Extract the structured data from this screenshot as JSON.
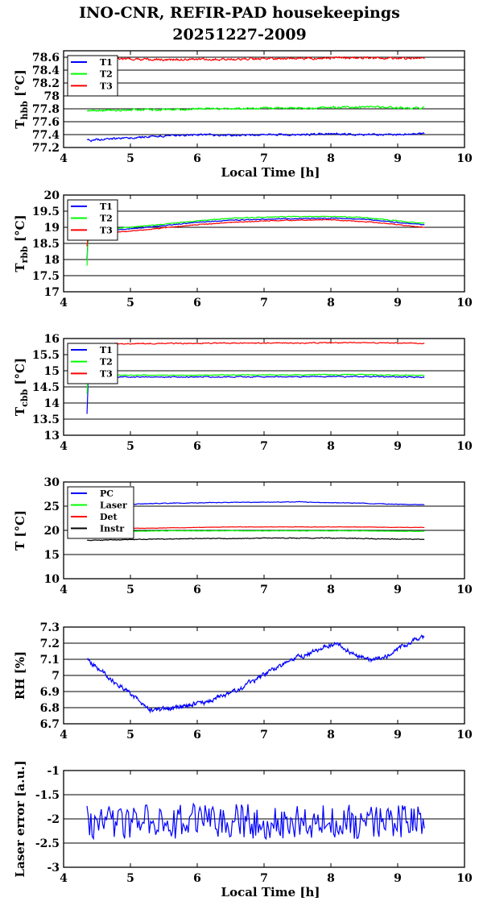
{
  "figure": {
    "title_line1": "INO-CNR, REFIR-PAD housekeepings",
    "title_line2": "20251227-2009"
  },
  "chart_data": [
    {
      "type": "line",
      "ylabel": "T_hbb [°C]",
      "ylabel_main": "T",
      "ylabel_sub": "hbb",
      "ylabel_tail": " [°C]",
      "xlabel": "Local Time [h]",
      "xlim": [
        4,
        10
      ],
      "ylim": [
        77.2,
        78.7
      ],
      "yticks": [
        77.2,
        77.4,
        77.6,
        77.8,
        78,
        78.2,
        78.4,
        78.6
      ],
      "xticks": [
        4,
        5,
        6,
        7,
        8,
        9,
        10
      ],
      "grid": "horizontal",
      "legend_position": "top-left",
      "series": [
        {
          "name": "T1",
          "color": "#0000ff",
          "x": [
            4.35,
            5.0,
            5.5,
            6.0,
            6.5,
            7.0,
            7.5,
            8.0,
            8.5,
            9.0,
            9.4
          ],
          "values": [
            77.31,
            77.35,
            77.38,
            77.4,
            77.39,
            77.4,
            77.4,
            77.41,
            77.4,
            77.4,
            77.42
          ],
          "noise": 0.012
        },
        {
          "name": "T2",
          "color": "#00ff00",
          "x": [
            4.35,
            5.0,
            5.5,
            6.0,
            6.5,
            7.0,
            7.5,
            8.0,
            8.5,
            9.0,
            9.4
          ],
          "values": [
            77.77,
            77.78,
            77.79,
            77.8,
            77.8,
            77.81,
            77.81,
            77.82,
            77.83,
            77.82,
            77.81
          ],
          "noise": 0.012
        },
        {
          "name": "T3",
          "color": "#ff0000",
          "x": [
            4.35,
            5.0,
            5.5,
            6.0,
            6.5,
            7.0,
            7.5,
            8.0,
            8.5,
            9.0,
            9.4
          ],
          "values": [
            78.57,
            78.57,
            78.56,
            78.57,
            78.57,
            78.58,
            78.58,
            78.59,
            78.59,
            78.58,
            78.58
          ],
          "noise": 0.013
        }
      ]
    },
    {
      "type": "line",
      "ylabel": "T_rbb [°C]",
      "ylabel_main": "T",
      "ylabel_sub": "rbb",
      "ylabel_tail": " [°C]",
      "xlabel": "",
      "xlim": [
        4,
        10
      ],
      "ylim": [
        17,
        20
      ],
      "yticks": [
        17,
        17.5,
        18,
        18.5,
        19,
        19.5,
        20
      ],
      "xticks": [
        4,
        5,
        6,
        7,
        8,
        9,
        10
      ],
      "grid": "horizontal",
      "legend_position": "top-left",
      "series": [
        {
          "name": "T1",
          "color": "#0000ff",
          "x": [
            4.35,
            4.37,
            4.5,
            5.0,
            5.5,
            6.0,
            6.5,
            7.0,
            7.5,
            8.0,
            8.5,
            9.0,
            9.4
          ],
          "values": [
            18.0,
            18.85,
            18.88,
            18.95,
            19.05,
            19.15,
            19.22,
            19.25,
            19.27,
            19.28,
            19.25,
            19.15,
            19.08
          ],
          "noise": 0.01
        },
        {
          "name": "T2",
          "color": "#00ff00",
          "x": [
            4.35,
            4.37,
            4.5,
            5.0,
            5.5,
            6.0,
            6.5,
            7.0,
            7.5,
            8.0,
            8.5,
            9.0,
            9.4
          ],
          "values": [
            17.8,
            18.9,
            18.93,
            19.0,
            19.1,
            19.2,
            19.28,
            19.31,
            19.33,
            19.34,
            19.3,
            19.2,
            19.12
          ],
          "noise": 0.012
        },
        {
          "name": "T3",
          "color": "#ff0000",
          "x": [
            4.35,
            4.37,
            4.5,
            5.0,
            5.5,
            6.0,
            6.5,
            7.0,
            7.5,
            8.0,
            8.5,
            9.0,
            9.4
          ],
          "values": [
            18.4,
            18.8,
            18.82,
            18.88,
            18.98,
            19.08,
            19.15,
            19.2,
            19.22,
            19.23,
            19.18,
            19.08,
            19.0
          ],
          "noise": 0.01
        }
      ]
    },
    {
      "type": "line",
      "ylabel": "T_cbb [°C]",
      "ylabel_main": "T",
      "ylabel_sub": "cbb",
      "ylabel_tail": " [°C]",
      "xlabel": "",
      "xlim": [
        4,
        10
      ],
      "ylim": [
        13,
        16
      ],
      "yticks": [
        13,
        13.5,
        14,
        14.5,
        15,
        15.5,
        16
      ],
      "xticks": [
        4,
        5,
        6,
        7,
        8,
        9,
        10
      ],
      "grid": "horizontal",
      "legend_position": "top-left",
      "series": [
        {
          "name": "T1",
          "color": "#0000ff",
          "x": [
            4.35,
            4.37,
            4.5,
            5.0,
            5.5,
            6.0,
            6.5,
            7.0,
            7.5,
            8.0,
            8.5,
            9.0,
            9.4
          ],
          "values": [
            13.65,
            14.8,
            14.8,
            14.81,
            14.8,
            14.81,
            14.81,
            14.81,
            14.81,
            14.82,
            14.82,
            14.81,
            14.8
          ],
          "noise": 0.012
        },
        {
          "name": "T2",
          "color": "#00ff00",
          "x": [
            4.35,
            4.37,
            4.5,
            5.0,
            5.5,
            6.0,
            6.5,
            7.0,
            7.5,
            8.0,
            8.5,
            9.0,
            9.4
          ],
          "values": [
            14.3,
            14.85,
            14.86,
            14.86,
            14.86,
            14.86,
            14.87,
            14.87,
            14.87,
            14.88,
            14.88,
            14.87,
            14.86
          ],
          "noise": 0.012
        },
        {
          "name": "T3",
          "color": "#ff0000",
          "x": [
            4.35,
            4.37,
            4.5,
            5.0,
            5.5,
            6.0,
            6.5,
            7.0,
            7.5,
            8.0,
            8.5,
            9.0,
            9.4
          ],
          "values": [
            15.75,
            15.84,
            15.84,
            15.84,
            15.85,
            15.85,
            15.86,
            15.86,
            15.86,
            15.87,
            15.87,
            15.86,
            15.85
          ],
          "noise": 0.012
        }
      ]
    },
    {
      "type": "line",
      "ylabel": "T [°C]",
      "ylabel_main": "T [°C]",
      "ylabel_sub": "",
      "ylabel_tail": "",
      "xlabel": "",
      "xlim": [
        4,
        10
      ],
      "ylim": [
        10,
        30
      ],
      "yticks": [
        10,
        15,
        20,
        25,
        30
      ],
      "xticks": [
        4,
        5,
        6,
        7,
        8,
        9,
        10
      ],
      "grid": "horizontal",
      "legend_position": "top-left",
      "series": [
        {
          "name": "PC",
          "color": "#0000ff",
          "x": [
            4.35,
            5.0,
            5.5,
            6.0,
            6.5,
            7.0,
            7.5,
            8.0,
            8.5,
            9.0,
            9.4
          ],
          "values": [
            24.9,
            25.4,
            25.6,
            25.7,
            25.8,
            25.8,
            25.9,
            25.7,
            25.6,
            25.4,
            25.3
          ],
          "noise": 0.05
        },
        {
          "name": "Laser",
          "color": "#00ff00",
          "x": [
            4.35,
            5.0,
            5.5,
            6.0,
            6.5,
            7.0,
            7.5,
            8.0,
            8.5,
            9.0,
            9.4
          ],
          "values": [
            19.6,
            19.8,
            19.9,
            19.9,
            19.9,
            19.9,
            19.9,
            19.9,
            19.9,
            19.8,
            19.8
          ],
          "noise": 0.03
        },
        {
          "name": "Det",
          "color": "#ff0000",
          "x": [
            4.35,
            5.0,
            5.5,
            6.0,
            6.5,
            7.0,
            7.5,
            8.0,
            8.5,
            9.0,
            9.4
          ],
          "values": [
            20.2,
            20.4,
            20.5,
            20.6,
            20.7,
            20.7,
            20.7,
            20.7,
            20.7,
            20.6,
            20.6
          ],
          "noise": 0.03
        },
        {
          "name": "Instr",
          "color": "#000000",
          "x": [
            4.35,
            5.0,
            5.5,
            6.0,
            6.5,
            7.0,
            7.5,
            8.0,
            8.5,
            9.0,
            9.4
          ],
          "values": [
            17.9,
            18.1,
            18.2,
            18.3,
            18.3,
            18.4,
            18.4,
            18.4,
            18.3,
            18.2,
            18.1
          ],
          "noise": 0.06
        }
      ]
    },
    {
      "type": "line",
      "ylabel": "RH [%]",
      "ylabel_main": "RH [%]",
      "ylabel_sub": "",
      "ylabel_tail": "",
      "xlabel": "",
      "xlim": [
        4,
        10
      ],
      "ylim": [
        6.7,
        7.3
      ],
      "yticks": [
        6.7,
        6.8,
        6.9,
        7,
        7.1,
        7.2,
        7.3
      ],
      "xticks": [
        4,
        5,
        6,
        7,
        8,
        9,
        10
      ],
      "grid": "horizontal",
      "legend_position": "none",
      "series": [
        {
          "name": "",
          "color": "#0000ff",
          "x": [
            4.35,
            4.5,
            4.7,
            4.9,
            5.1,
            5.3,
            5.5,
            5.7,
            5.9,
            6.1,
            6.3,
            6.5,
            6.7,
            6.9,
            7.1,
            7.3,
            7.5,
            7.7,
            7.9,
            8.05,
            8.2,
            8.4,
            8.6,
            8.8,
            9.0,
            9.2,
            9.4
          ],
          "values": [
            7.09,
            7.05,
            6.98,
            6.92,
            6.85,
            6.78,
            6.79,
            6.8,
            6.82,
            6.83,
            6.86,
            6.89,
            6.93,
            6.98,
            7.03,
            7.07,
            7.11,
            7.14,
            7.18,
            7.2,
            7.17,
            7.12,
            7.09,
            7.11,
            7.16,
            7.21,
            7.24
          ],
          "noise": 0.012
        }
      ]
    },
    {
      "type": "line",
      "ylabel": "Laser error [a.u.]",
      "ylabel_main": "Laser error [a.u.]",
      "ylabel_sub": "",
      "ylabel_tail": "",
      "xlabel": "Local Time [h]",
      "xlim": [
        4,
        10
      ],
      "ylim": [
        -3,
        -1
      ],
      "yticks": [
        -1,
        -1.5,
        -2,
        -2.5,
        -3
      ],
      "xticks": [
        4,
        5,
        6,
        7,
        8,
        9,
        10
      ],
      "grid": "horizontal",
      "legend_position": "none",
      "series": [
        {
          "name": "",
          "color": "#0000ff",
          "x": [
            4.35,
            9.4
          ],
          "values": [
            -2.05,
            -2.05
          ],
          "noise": 0.28
        }
      ]
    }
  ]
}
